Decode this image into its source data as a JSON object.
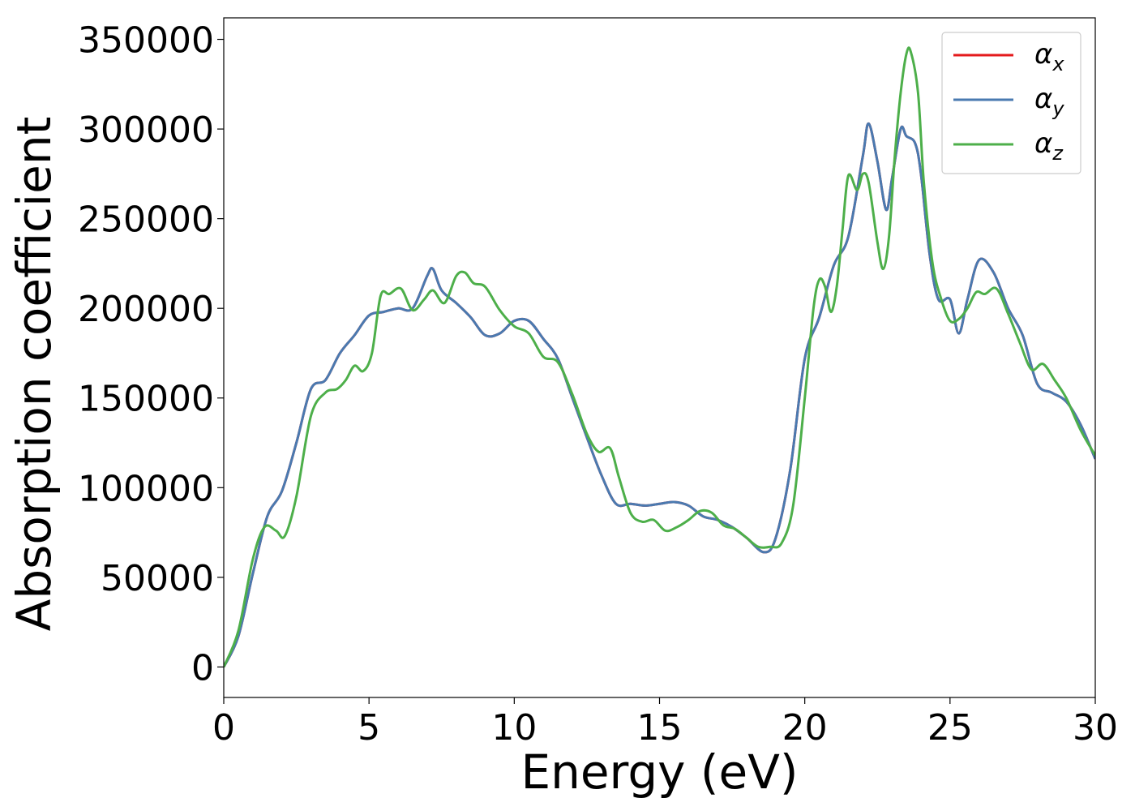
{
  "chart_data": {
    "type": "line",
    "title": "",
    "xlabel": "Energy (eV)",
    "ylabel": "Absorption coefficient",
    "xlim": [
      0,
      30
    ],
    "ylim": [
      -17000,
      362000
    ],
    "x_ticks": [
      "0",
      "5",
      "10",
      "15",
      "20",
      "25",
      "30"
    ],
    "y_ticks": [
      "0",
      "50000",
      "100000",
      "150000",
      "200000",
      "250000",
      "300000",
      "350000"
    ],
    "grid": false,
    "legend_position": "top-right",
    "series": [
      {
        "name": "α",
        "subscript": "x",
        "color": "#e41a1c",
        "x": [
          0,
          0.5,
          1.0,
          1.5,
          2.0,
          2.5,
          3.0,
          3.5,
          4.0,
          4.5,
          5.0,
          5.5,
          6.0,
          6.5,
          7.0,
          7.2,
          7.5,
          8.0,
          8.5,
          9.0,
          9.5,
          10.0,
          10.5,
          11.0,
          11.5,
          12.0,
          12.5,
          13.0,
          13.5,
          14.0,
          14.5,
          15.0,
          15.5,
          16.0,
          16.5,
          17.0,
          17.5,
          18.0,
          18.6,
          19.0,
          19.5,
          20.0,
          20.5,
          21.0,
          21.5,
          22.0,
          22.2,
          22.5,
          22.8,
          23.0,
          23.3,
          23.5,
          23.8,
          24.0,
          24.3,
          24.6,
          25.0,
          25.3,
          25.6,
          26.0,
          26.5,
          27.0,
          27.5,
          28.0,
          28.5,
          29.0,
          29.5,
          30.0
        ],
        "y": [
          0,
          17000,
          52000,
          84000,
          98000,
          125000,
          155000,
          160000,
          175000,
          185000,
          196000,
          198000,
          200000,
          200000,
          218000,
          222000,
          210000,
          203000,
          195000,
          185000,
          186000,
          193000,
          193000,
          183000,
          172000,
          150000,
          128000,
          107000,
          91000,
          91000,
          90000,
          91000,
          92000,
          90000,
          84000,
          82000,
          78000,
          72000,
          64000,
          72000,
          110000,
          172000,
          195000,
          224000,
          240000,
          285000,
          303000,
          282000,
          255000,
          272000,
          300000,
          296000,
          292000,
          275000,
          230000,
          205000,
          205000,
          186000,
          205000,
          227000,
          220000,
          200000,
          185000,
          158000,
          153000,
          148000,
          135000,
          116000
        ]
      },
      {
        "name": "α",
        "subscript": "y",
        "color": "#4a7ab0",
        "x": [
          0,
          0.5,
          1.0,
          1.5,
          2.0,
          2.5,
          3.0,
          3.5,
          4.0,
          4.5,
          5.0,
          5.5,
          6.0,
          6.5,
          7.0,
          7.2,
          7.5,
          8.0,
          8.5,
          9.0,
          9.5,
          10.0,
          10.5,
          11.0,
          11.5,
          12.0,
          12.5,
          13.0,
          13.5,
          14.0,
          14.5,
          15.0,
          15.5,
          16.0,
          16.5,
          17.0,
          17.5,
          18.0,
          18.6,
          19.0,
          19.5,
          20.0,
          20.5,
          21.0,
          21.5,
          22.0,
          22.2,
          22.5,
          22.8,
          23.0,
          23.3,
          23.5,
          23.8,
          24.0,
          24.3,
          24.6,
          25.0,
          25.3,
          25.6,
          26.0,
          26.5,
          27.0,
          27.5,
          28.0,
          28.5,
          29.0,
          29.5,
          30.0
        ],
        "y": [
          0,
          17000,
          52000,
          84000,
          98000,
          125000,
          155000,
          160000,
          175000,
          185000,
          196000,
          198000,
          200000,
          200000,
          218000,
          222000,
          210000,
          203000,
          195000,
          185000,
          186000,
          193000,
          193000,
          183000,
          172000,
          150000,
          128000,
          107000,
          91000,
          91000,
          90000,
          91000,
          92000,
          90000,
          84000,
          82000,
          78000,
          72000,
          64000,
          72000,
          110000,
          172000,
          195000,
          224000,
          240000,
          285000,
          303000,
          282000,
          255000,
          272000,
          300000,
          296000,
          292000,
          275000,
          230000,
          205000,
          205000,
          186000,
          205000,
          227000,
          220000,
          200000,
          185000,
          158000,
          153000,
          148000,
          135000,
          116000
        ]
      },
      {
        "name": "α",
        "subscript": "z",
        "color": "#4daf4a",
        "x": [
          0,
          0.5,
          1.0,
          1.4,
          1.8,
          2.1,
          2.5,
          3.0,
          3.5,
          3.9,
          4.2,
          4.5,
          4.8,
          5.1,
          5.4,
          5.7,
          6.1,
          6.5,
          6.9,
          7.2,
          7.6,
          8.0,
          8.3,
          8.6,
          9.0,
          9.5,
          10.0,
          10.5,
          11.0,
          11.5,
          12.0,
          12.5,
          12.9,
          13.3,
          13.6,
          14.0,
          14.4,
          14.8,
          15.2,
          15.6,
          16.0,
          16.4,
          16.8,
          17.2,
          17.6,
          18.0,
          18.4,
          18.8,
          19.2,
          19.6,
          20.0,
          20.3,
          20.5,
          20.7,
          20.9,
          21.1,
          21.3,
          21.5,
          21.8,
          22.0,
          22.2,
          22.5,
          22.7,
          22.9,
          23.1,
          23.3,
          23.5,
          23.65,
          23.9,
          24.1,
          24.4,
          24.7,
          25.0,
          25.3,
          25.6,
          25.9,
          26.2,
          26.6,
          27.0,
          27.4,
          27.8,
          28.2,
          28.6,
          29.0,
          29.5,
          30.0
        ],
        "y": [
          0,
          20000,
          60000,
          78000,
          76000,
          73000,
          95000,
          140000,
          153000,
          155000,
          160000,
          168000,
          165000,
          175000,
          207000,
          208000,
          211000,
          199000,
          205000,
          210000,
          203000,
          218000,
          220000,
          214000,
          212000,
          199000,
          190000,
          186000,
          173000,
          170000,
          152000,
          130000,
          120000,
          122000,
          106000,
          86000,
          81000,
          82000,
          76000,
          78000,
          82000,
          87000,
          86000,
          79000,
          77000,
          72000,
          67000,
          67000,
          69000,
          90000,
          150000,
          200000,
          216000,
          212000,
          198000,
          212000,
          244000,
          274000,
          266000,
          275000,
          270000,
          237000,
          222000,
          240000,
          285000,
          320000,
          342000,
          343000,
          320000,
          270000,
          225000,
          205000,
          193000,
          194000,
          200000,
          209000,
          208000,
          211000,
          197000,
          181000,
          166000,
          169000,
          160000,
          150000,
          132000,
          118000
        ]
      }
    ]
  }
}
